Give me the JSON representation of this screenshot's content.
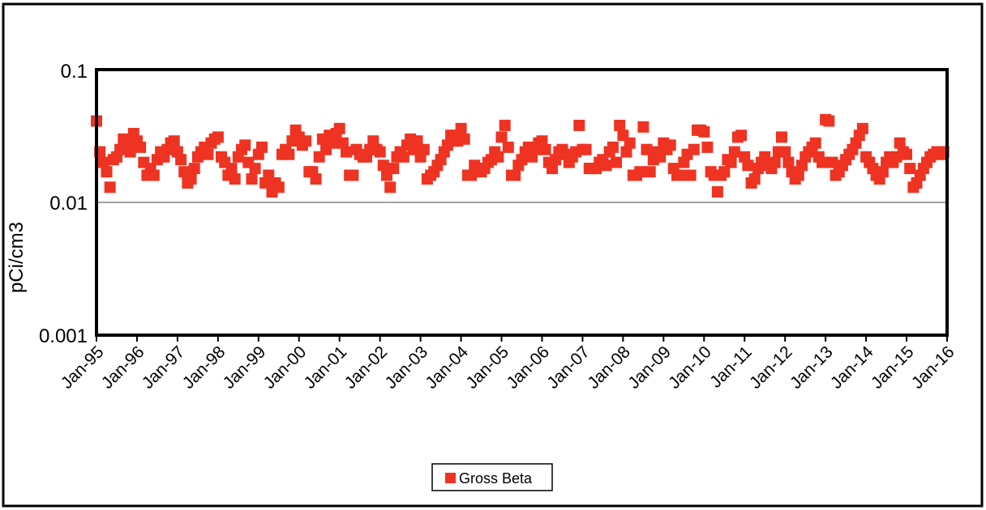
{
  "chart_data": {
    "type": "scatter",
    "title": "",
    "xlabel": "",
    "ylabel": "pCi/cm3",
    "y_scale": "log",
    "ylim": [
      0.001,
      0.1
    ],
    "xlim": [
      "1995-01",
      "2016-01"
    ],
    "y_ticks": [
      "0.1",
      "0.01",
      "0.001"
    ],
    "x_ticks": [
      "Jan-95",
      "Jan-96",
      "Jan-97",
      "Jan-98",
      "Jan-99",
      "Jan-00",
      "Jan-01",
      "Jan-02",
      "Jan-03",
      "Jan-04",
      "Jan-05",
      "Jan-06",
      "Jan-07",
      "Jan-08",
      "Jan-09",
      "Jan-10",
      "Jan-11",
      "Jan-12",
      "Jan-13",
      "Jan-14",
      "Jan-15",
      "Jan-16"
    ],
    "grid": "horizontal",
    "legend_position": "bottom-center",
    "color": "#ee3322",
    "series": [
      {
        "name": "Gross Beta",
        "points": [
          [
            "1995-01",
            0.041
          ],
          [
            "1995-02",
            0.024
          ],
          [
            "1995-03",
            0.02
          ],
          [
            "1995-04",
            0.017
          ],
          [
            "1995-05",
            0.013
          ],
          [
            "1995-06",
            0.021
          ],
          [
            "1995-07",
            0.022
          ],
          [
            "1995-08",
            0.025
          ],
          [
            "1995-09",
            0.03
          ],
          [
            "1995-10",
            0.028
          ],
          [
            "1995-11",
            0.024
          ],
          [
            "1995-12",
            0.033
          ],
          [
            "1996-01",
            0.029
          ],
          [
            "1996-02",
            0.026
          ],
          [
            "1996-03",
            0.02
          ],
          [
            "1996-04",
            0.016
          ],
          [
            "1996-05",
            0.018
          ],
          [
            "1996-06",
            0.016
          ],
          [
            "1996-07",
            0.021
          ],
          [
            "1996-08",
            0.024
          ],
          [
            "1996-09",
            0.022
          ],
          [
            "1996-10",
            0.025
          ],
          [
            "1996-11",
            0.028
          ],
          [
            "1996-12",
            0.029
          ],
          [
            "1997-01",
            0.024
          ],
          [
            "1997-02",
            0.021
          ],
          [
            "1997-03",
            0.017
          ],
          [
            "1997-04",
            0.014
          ],
          [
            "1997-05",
            0.015
          ],
          [
            "1997-06",
            0.018
          ],
          [
            "1997-07",
            0.022
          ],
          [
            "1997-08",
            0.024
          ],
          [
            "1997-09",
            0.026
          ],
          [
            "1997-10",
            0.023
          ],
          [
            "1997-11",
            0.028
          ],
          [
            "1997-12",
            0.03
          ],
          [
            "1998-01",
            0.031
          ],
          [
            "1998-02",
            0.022
          ],
          [
            "1998-03",
            0.02
          ],
          [
            "1998-04",
            0.016
          ],
          [
            "1998-05",
            0.018
          ],
          [
            "1998-06",
            0.015
          ],
          [
            "1998-07",
            0.022
          ],
          [
            "1998-08",
            0.025
          ],
          [
            "1998-09",
            0.027
          ],
          [
            "1998-10",
            0.02
          ],
          [
            "1998-11",
            0.015
          ],
          [
            "1998-12",
            0.018
          ],
          [
            "1999-01",
            0.023
          ],
          [
            "1999-02",
            0.026
          ],
          [
            "1999-03",
            0.014
          ],
          [
            "1999-04",
            0.016
          ],
          [
            "1999-05",
            0.012
          ],
          [
            "1999-06",
            0.014
          ],
          [
            "1999-07",
            0.013
          ],
          [
            "1999-08",
            0.023
          ],
          [
            "1999-09",
            0.025
          ],
          [
            "1999-10",
            0.023
          ],
          [
            "1999-11",
            0.029
          ],
          [
            "1999-12",
            0.035
          ],
          [
            "2000-01",
            0.031
          ],
          [
            "2000-02",
            0.027
          ],
          [
            "2000-03",
            0.029
          ],
          [
            "2000-04",
            0.017
          ],
          [
            "2000-05",
            0.017
          ],
          [
            "2000-06",
            0.015
          ],
          [
            "2000-07",
            0.022
          ],
          [
            "2000-08",
            0.03
          ],
          [
            "2000-09",
            0.025
          ],
          [
            "2000-10",
            0.032
          ],
          [
            "2000-11",
            0.028
          ],
          [
            "2000-12",
            0.033
          ],
          [
            "2001-01",
            0.036
          ],
          [
            "2001-02",
            0.028
          ],
          [
            "2001-03",
            0.024
          ],
          [
            "2001-04",
            0.016
          ],
          [
            "2001-05",
            0.016
          ],
          [
            "2001-06",
            0.025
          ],
          [
            "2001-07",
            0.023
          ],
          [
            "2001-08",
            0.022
          ],
          [
            "2001-09",
            0.022
          ],
          [
            "2001-10",
            0.025
          ],
          [
            "2001-11",
            0.029
          ],
          [
            "2001-12",
            0.025
          ],
          [
            "2002-01",
            0.024
          ],
          [
            "2002-02",
            0.019
          ],
          [
            "2002-03",
            0.016
          ],
          [
            "2002-04",
            0.013
          ],
          [
            "2002-05",
            0.018
          ],
          [
            "2002-06",
            0.022
          ],
          [
            "2002-07",
            0.024
          ],
          [
            "2002-08",
            0.022
          ],
          [
            "2002-09",
            0.027
          ],
          [
            "2002-10",
            0.03
          ],
          [
            "2002-11",
            0.025
          ],
          [
            "2002-12",
            0.029
          ],
          [
            "2003-01",
            0.022
          ],
          [
            "2003-02",
            0.025
          ],
          [
            "2003-03",
            0.015
          ],
          [
            "2003-04",
            0.016
          ],
          [
            "2003-05",
            0.017
          ],
          [
            "2003-06",
            0.019
          ],
          [
            "2003-07",
            0.021
          ],
          [
            "2003-08",
            0.024
          ],
          [
            "2003-09",
            0.027
          ],
          [
            "2003-10",
            0.032
          ],
          [
            "2003-11",
            0.032
          ],
          [
            "2003-12",
            0.029
          ],
          [
            "2004-01",
            0.036
          ],
          [
            "2004-02",
            0.03
          ],
          [
            "2004-03",
            0.016
          ],
          [
            "2004-04",
            0.016
          ],
          [
            "2004-05",
            0.019
          ],
          [
            "2004-06",
            0.018
          ],
          [
            "2004-07",
            0.017
          ],
          [
            "2004-08",
            0.018
          ],
          [
            "2004-09",
            0.02
          ],
          [
            "2004-10",
            0.021
          ],
          [
            "2004-11",
            0.024
          ],
          [
            "2004-12",
            0.022
          ],
          [
            "2005-01",
            0.031
          ],
          [
            "2005-02",
            0.038
          ],
          [
            "2005-03",
            0.026
          ],
          [
            "2005-04",
            0.016
          ],
          [
            "2005-05",
            0.016
          ],
          [
            "2005-06",
            0.019
          ],
          [
            "2005-07",
            0.021
          ],
          [
            "2005-08",
            0.024
          ],
          [
            "2005-09",
            0.026
          ],
          [
            "2005-10",
            0.022
          ],
          [
            "2005-11",
            0.025
          ],
          [
            "2005-12",
            0.028
          ],
          [
            "2006-01",
            0.029
          ],
          [
            "2006-02",
            0.025
          ],
          [
            "2006-03",
            0.02
          ],
          [
            "2006-04",
            0.018
          ],
          [
            "2006-05",
            0.021
          ],
          [
            "2006-06",
            0.024
          ],
          [
            "2006-07",
            0.025
          ],
          [
            "2006-08",
            0.023
          ],
          [
            "2006-09",
            0.02
          ],
          [
            "2006-10",
            0.022
          ],
          [
            "2006-11",
            0.024
          ],
          [
            "2006-12",
            0.038
          ],
          [
            "2007-01",
            0.025
          ],
          [
            "2007-02",
            0.025
          ],
          [
            "2007-03",
            0.018
          ],
          [
            "2007-04",
            0.018
          ],
          [
            "2007-05",
            0.018
          ],
          [
            "2007-06",
            0.02
          ],
          [
            "2007-07",
            0.021
          ],
          [
            "2007-08",
            0.019
          ],
          [
            "2007-09",
            0.024
          ],
          [
            "2007-10",
            0.026
          ],
          [
            "2007-11",
            0.02
          ],
          [
            "2007-12",
            0.038
          ],
          [
            "2008-01",
            0.032
          ],
          [
            "2008-02",
            0.024
          ],
          [
            "2008-03",
            0.028
          ],
          [
            "2008-04",
            0.016
          ],
          [
            "2008-05",
            0.016
          ],
          [
            "2008-06",
            0.017
          ],
          [
            "2008-07",
            0.037
          ],
          [
            "2008-08",
            0.025
          ],
          [
            "2008-09",
            0.017
          ],
          [
            "2008-10",
            0.021
          ],
          [
            "2008-11",
            0.024
          ],
          [
            "2008-12",
            0.022
          ],
          [
            "2009-01",
            0.028
          ],
          [
            "2009-02",
            0.025
          ],
          [
            "2009-03",
            0.027
          ],
          [
            "2009-04",
            0.018
          ],
          [
            "2009-05",
            0.016
          ],
          [
            "2009-06",
            0.016
          ],
          [
            "2009-07",
            0.02
          ],
          [
            "2009-08",
            0.023
          ],
          [
            "2009-09",
            0.016
          ],
          [
            "2009-10",
            0.025
          ],
          [
            "2009-11",
            0.035
          ],
          [
            "2009-12",
            0.035
          ],
          [
            "2010-01",
            0.034
          ],
          [
            "2010-02",
            0.026
          ],
          [
            "2010-03",
            0.017
          ],
          [
            "2010-04",
            0.016
          ],
          [
            "2010-05",
            0.012
          ],
          [
            "2010-06",
            0.016
          ],
          [
            "2010-07",
            0.017
          ],
          [
            "2010-08",
            0.021
          ],
          [
            "2010-09",
            0.02
          ],
          [
            "2010-10",
            0.024
          ],
          [
            "2010-11",
            0.031
          ],
          [
            "2010-12",
            0.032
          ],
          [
            "2011-01",
            0.022
          ],
          [
            "2011-02",
            0.019
          ],
          [
            "2011-03",
            0.014
          ],
          [
            "2011-04",
            0.015
          ],
          [
            "2011-05",
            0.018
          ],
          [
            "2011-06",
            0.02
          ],
          [
            "2011-07",
            0.022
          ],
          [
            "2011-08",
            0.019
          ],
          [
            "2011-09",
            0.018
          ],
          [
            "2011-10",
            0.02
          ],
          [
            "2011-11",
            0.024
          ],
          [
            "2011-12",
            0.031
          ],
          [
            "2012-01",
            0.024
          ],
          [
            "2012-02",
            0.02
          ],
          [
            "2012-03",
            0.017
          ],
          [
            "2012-04",
            0.015
          ],
          [
            "2012-05",
            0.016
          ],
          [
            "2012-06",
            0.019
          ],
          [
            "2012-07",
            0.022
          ],
          [
            "2012-08",
            0.024
          ],
          [
            "2012-09",
            0.026
          ],
          [
            "2012-10",
            0.028
          ],
          [
            "2012-11",
            0.022
          ],
          [
            "2012-12",
            0.02
          ],
          [
            "2013-01",
            0.042
          ],
          [
            "2013-02",
            0.041
          ],
          [
            "2013-03",
            0.02
          ],
          [
            "2013-04",
            0.016
          ],
          [
            "2013-05",
            0.017
          ],
          [
            "2013-06",
            0.019
          ],
          [
            "2013-07",
            0.021
          ],
          [
            "2013-08",
            0.023
          ],
          [
            "2013-09",
            0.025
          ],
          [
            "2013-10",
            0.028
          ],
          [
            "2013-11",
            0.032
          ],
          [
            "2013-12",
            0.036
          ],
          [
            "2014-01",
            0.022
          ],
          [
            "2014-02",
            0.02
          ],
          [
            "2014-03",
            0.018
          ],
          [
            "2014-04",
            0.016
          ],
          [
            "2014-05",
            0.015
          ],
          [
            "2014-06",
            0.017
          ],
          [
            "2014-07",
            0.02
          ],
          [
            "2014-08",
            0.022
          ],
          [
            "2014-09",
            0.02
          ],
          [
            "2014-10",
            0.022
          ],
          [
            "2014-11",
            0.028
          ],
          [
            "2014-12",
            0.024
          ],
          [
            "2015-01",
            0.023
          ],
          [
            "2015-02",
            0.018
          ],
          [
            "2015-03",
            0.013
          ],
          [
            "2015-04",
            0.014
          ],
          [
            "2015-05",
            0.016
          ],
          [
            "2015-06",
            0.018
          ],
          [
            "2015-07",
            0.02
          ],
          [
            "2015-08",
            0.022
          ],
          [
            "2015-09",
            0.023
          ],
          [
            "2015-10",
            0.024
          ],
          [
            "2015-11",
            0.023
          ],
          [
            "2015-12",
            0.024
          ]
        ]
      }
    ]
  }
}
